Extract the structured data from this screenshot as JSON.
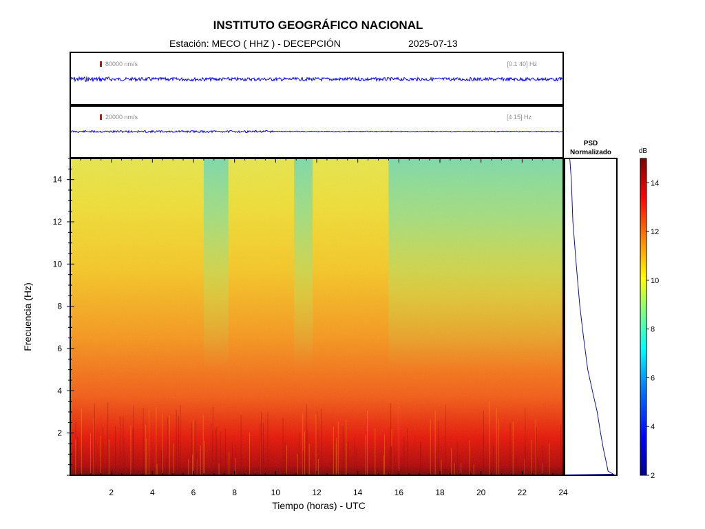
{
  "header": {
    "title": "INSTITUTO GEOGRÁFICO NACIONAL",
    "station": "Estación:  MECO ( HHZ ) - DECEPCIÓN",
    "date": "2025-07-13"
  },
  "chart_data": [
    {
      "type": "line",
      "panel": "seismogram-broadband",
      "scale_label": "80000 nm/s",
      "band_label": "[0.1 40] Hz",
      "x_range": [
        0,
        24
      ],
      "description_color": "#0000ff"
    },
    {
      "type": "line",
      "panel": "seismogram-filtered",
      "scale_label": "20000 nm/s",
      "band_label": "[4 15] Hz",
      "x_range": [
        0,
        24
      ],
      "description_color": "#0000ff"
    },
    {
      "type": "heatmap",
      "panel": "spectrogram",
      "xlabel": "Tiempo (horas) - UTC",
      "ylabel": "Frecuencia  (Hz)",
      "xlim": [
        0,
        24
      ],
      "ylim": [
        0,
        15
      ],
      "xticks": [
        "2",
        "4",
        "6",
        "8",
        "10",
        "12",
        "14",
        "16",
        "18",
        "20",
        "22",
        "24"
      ],
      "yticks": [
        "2",
        "4",
        "6",
        "8",
        "10",
        "12",
        "14"
      ],
      "quieter_bands_hours": [
        [
          6.5,
          7.7
        ],
        [
          10.9,
          11.8
        ],
        [
          15.5,
          24
        ]
      ]
    },
    {
      "type": "line",
      "panel": "psd",
      "title_line1": "PSD",
      "title_line2": "Normalizado",
      "x": [
        0.08,
        0.1,
        0.14,
        0.2,
        0.28,
        0.36,
        0.45,
        0.54,
        0.62,
        0.7,
        0.76,
        0.8,
        0.85,
        0.95
      ],
      "freq_hz": [
        15,
        14,
        12,
        10,
        8,
        6.5,
        5,
        4,
        3,
        2,
        1.3,
        0.7,
        0.2,
        0.05
      ]
    },
    {
      "type": "heatmap",
      "panel": "colorbar",
      "label": "dB",
      "range": [
        2,
        15
      ],
      "ticks": [
        "2",
        "4",
        "6",
        "8",
        "10",
        "12",
        "14"
      ],
      "colormap": [
        "#00008f",
        "#0000ff",
        "#00a0ff",
        "#00ffff",
        "#80ff80",
        "#ffff00",
        "#ff8000",
        "#ff0000",
        "#800000"
      ]
    }
  ]
}
